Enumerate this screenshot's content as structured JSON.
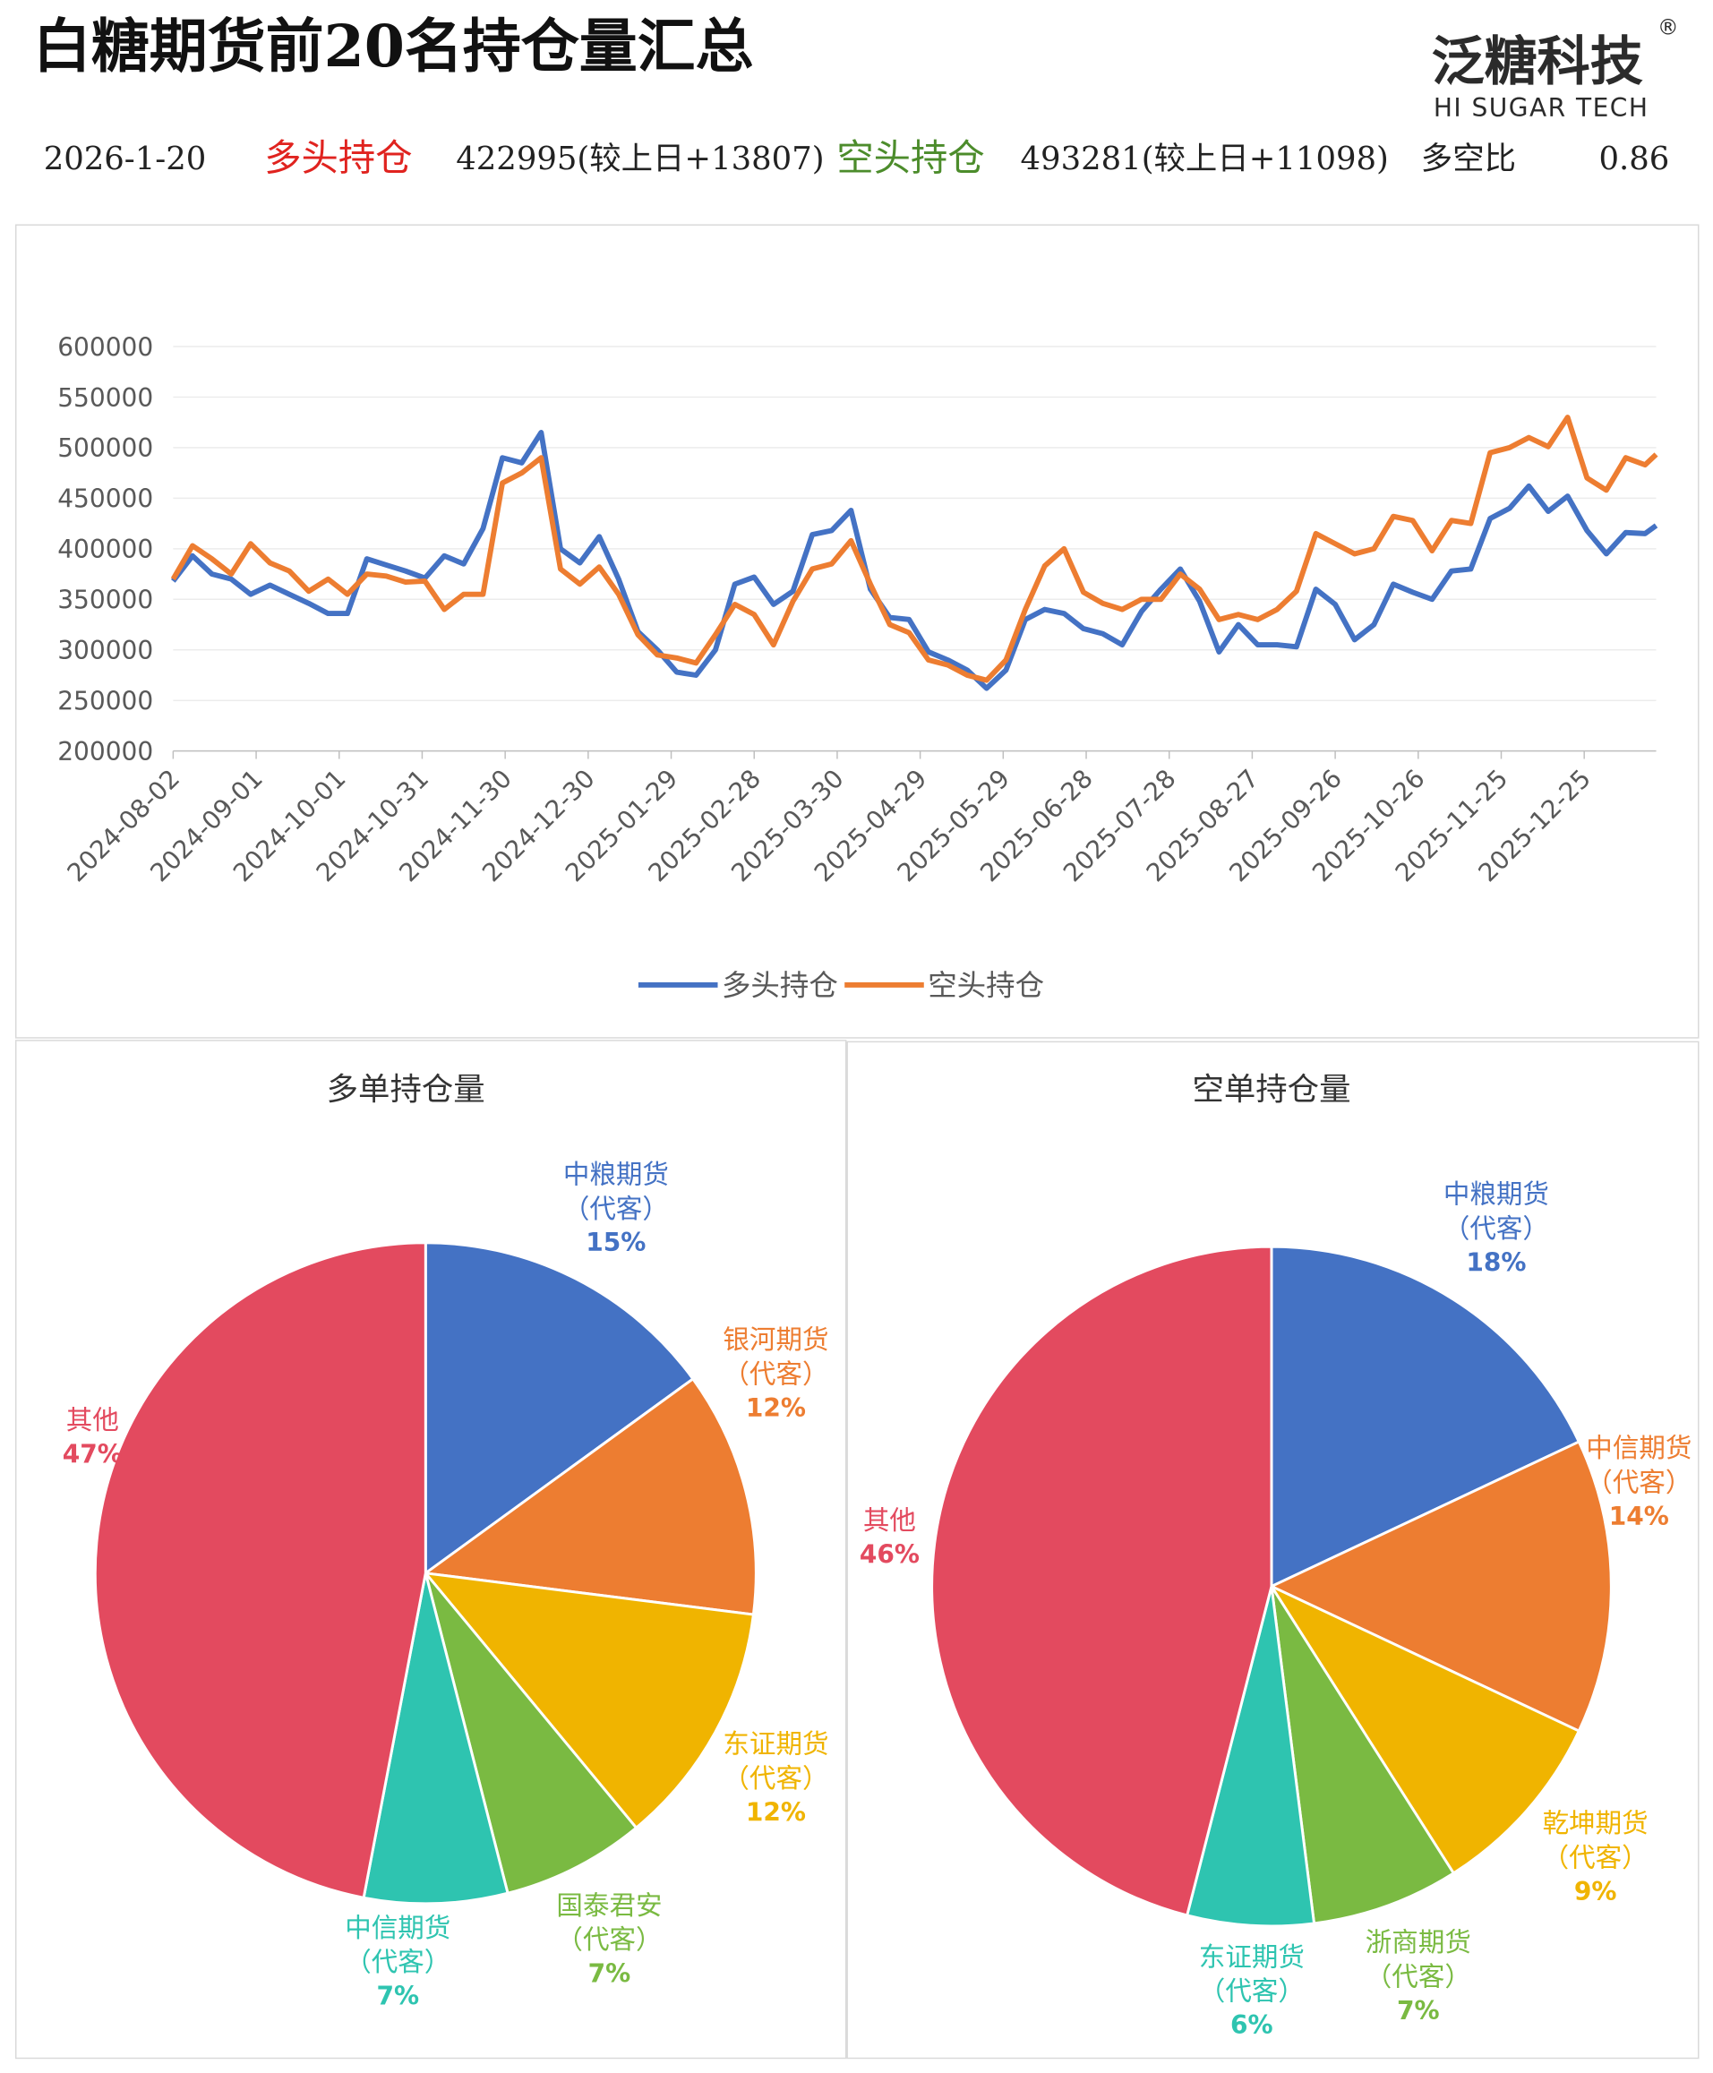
{
  "header": {
    "title": "白糖期货前20名持仓量汇总",
    "logo": {
      "name": "泛糖科技",
      "mark": "®",
      "english": "HI SUGAR TECH"
    },
    "date": "2026-1-20",
    "long_label": "多头持仓",
    "long_value": "422995(较上日+13807)",
    "short_label": "空头持仓",
    "short_value": "493281(较上日+11098)",
    "ratio_label": "多空比",
    "ratio_value": "0.86"
  },
  "chart_data": [
    {
      "type": "line",
      "xlim": [
        "2024-08-02",
        "2026-01-20"
      ],
      "xticks": [
        "2024-08-02",
        "2024-09-01",
        "2024-10-01",
        "2024-10-31",
        "2024-11-30",
        "2024-12-30",
        "2025-01-29",
        "2025-02-28",
        "2025-03-30",
        "2025-04-29",
        "2025-05-29",
        "2025-06-28",
        "2025-07-28",
        "2025-08-27",
        "2025-09-26",
        "2025-10-26",
        "2025-11-25",
        "2025-12-25"
      ],
      "ylim": [
        200000,
        600000
      ],
      "yticks": [
        200000,
        250000,
        300000,
        350000,
        400000,
        450000,
        500000,
        550000,
        600000
      ],
      "grid": true,
      "legend": "bottom",
      "x": [
        "2024-08-02",
        "2024-08-09",
        "2024-08-16",
        "2024-08-23",
        "2024-08-30",
        "2024-09-06",
        "2024-09-13",
        "2024-09-20",
        "2024-09-27",
        "2024-10-04",
        "2024-10-11",
        "2024-10-18",
        "2024-10-25",
        "2024-11-01",
        "2024-11-08",
        "2024-11-15",
        "2024-11-22",
        "2024-11-29",
        "2024-12-06",
        "2024-12-13",
        "2024-12-20",
        "2024-12-27",
        "2025-01-03",
        "2025-01-10",
        "2025-01-17",
        "2025-01-24",
        "2025-01-31",
        "2025-02-07",
        "2025-02-14",
        "2025-02-21",
        "2025-02-28",
        "2025-03-07",
        "2025-03-14",
        "2025-03-21",
        "2025-03-28",
        "2025-04-04",
        "2025-04-11",
        "2025-04-18",
        "2025-04-25",
        "2025-05-02",
        "2025-05-09",
        "2025-05-16",
        "2025-05-23",
        "2025-05-30",
        "2025-06-06",
        "2025-06-13",
        "2025-06-20",
        "2025-06-27",
        "2025-07-04",
        "2025-07-11",
        "2025-07-18",
        "2025-07-25",
        "2025-08-01",
        "2025-08-08",
        "2025-08-15",
        "2025-08-22",
        "2025-08-29",
        "2025-09-05",
        "2025-09-12",
        "2025-09-19",
        "2025-09-26",
        "2025-10-03",
        "2025-10-10",
        "2025-10-17",
        "2025-10-24",
        "2025-10-31",
        "2025-11-07",
        "2025-11-14",
        "2025-11-21",
        "2025-11-28",
        "2025-12-05",
        "2025-12-12",
        "2025-12-19",
        "2025-12-26",
        "2026-01-02",
        "2026-01-09",
        "2026-01-16",
        "2026-01-20"
      ],
      "series": [
        {
          "name": "多头持仓",
          "color": "#4472c4",
          "values": [
            368000,
            393000,
            375000,
            370000,
            355000,
            364000,
            355000,
            346000,
            336000,
            336000,
            390000,
            384000,
            378000,
            371000,
            393000,
            385000,
            420000,
            490000,
            485000,
            515000,
            400000,
            386000,
            412000,
            370000,
            318000,
            300000,
            278000,
            275000,
            300000,
            365000,
            372000,
            345000,
            358000,
            414000,
            418000,
            438000,
            360000,
            332000,
            330000,
            298000,
            290000,
            280000,
            262000,
            280000,
            330000,
            340000,
            336000,
            321000,
            316000,
            305000,
            338000,
            360000,
            380000,
            348000,
            298000,
            325000,
            305000,
            305000,
            303000,
            360000,
            345000,
            310000,
            325000,
            365000,
            357000,
            350000,
            378000,
            380000,
            430000,
            440000,
            462000,
            437000,
            452000,
            418000,
            395000,
            416000,
            415000,
            422995
          ]
        },
        {
          "name": "空头持仓",
          "color": "#ed7d31",
          "values": [
            370000,
            403000,
            390000,
            375000,
            405000,
            386000,
            378000,
            358000,
            370000,
            355000,
            375000,
            373000,
            367000,
            368000,
            340000,
            355000,
            355000,
            465000,
            475000,
            490000,
            380000,
            365000,
            382000,
            355000,
            315000,
            295000,
            292000,
            287000,
            315000,
            345000,
            335000,
            305000,
            348000,
            380000,
            385000,
            408000,
            365000,
            325000,
            317000,
            290000,
            285000,
            275000,
            270000,
            290000,
            340000,
            383000,
            400000,
            357000,
            346000,
            340000,
            350000,
            350000,
            375000,
            360000,
            330000,
            335000,
            330000,
            340000,
            358000,
            415000,
            405000,
            395000,
            400000,
            432000,
            428000,
            398000,
            428000,
            425000,
            495000,
            500000,
            510000,
            501000,
            530000,
            470000,
            458000,
            490000,
            483000,
            493281
          ]
        }
      ]
    },
    {
      "type": "pie",
      "title": "多单持仓量",
      "categories": [
        "中粮期货（代客）",
        "银河期货（代客）",
        "东证期货（代客）",
        "国泰君安（代客）",
        "中信期货（代客）",
        "其他"
      ],
      "values": [
        15,
        12,
        12,
        7,
        7,
        47
      ],
      "value_labels": [
        "15%",
        "12%",
        "12%",
        "7%",
        "7%",
        "47%"
      ],
      "colors": [
        "#4472c4",
        "#ed7d31",
        "#f0b400",
        "#7aba42",
        "#2ec4b0",
        "#e34a5f"
      ]
    },
    {
      "type": "pie",
      "title": "空单持仓量",
      "categories": [
        "中粮期货（代客）",
        "中信期货（代客）",
        "乾坤期货（代客）",
        "浙商期货（代客）",
        "东证期货（代客）",
        "其他"
      ],
      "values": [
        18,
        14,
        9,
        7,
        6,
        46
      ],
      "value_labels": [
        "18%",
        "14%",
        "9%",
        "7%",
        "6%",
        "46%"
      ],
      "colors": [
        "#4472c4",
        "#ed7d31",
        "#f0b400",
        "#7aba42",
        "#2ec4b0",
        "#e34a5f"
      ]
    }
  ]
}
